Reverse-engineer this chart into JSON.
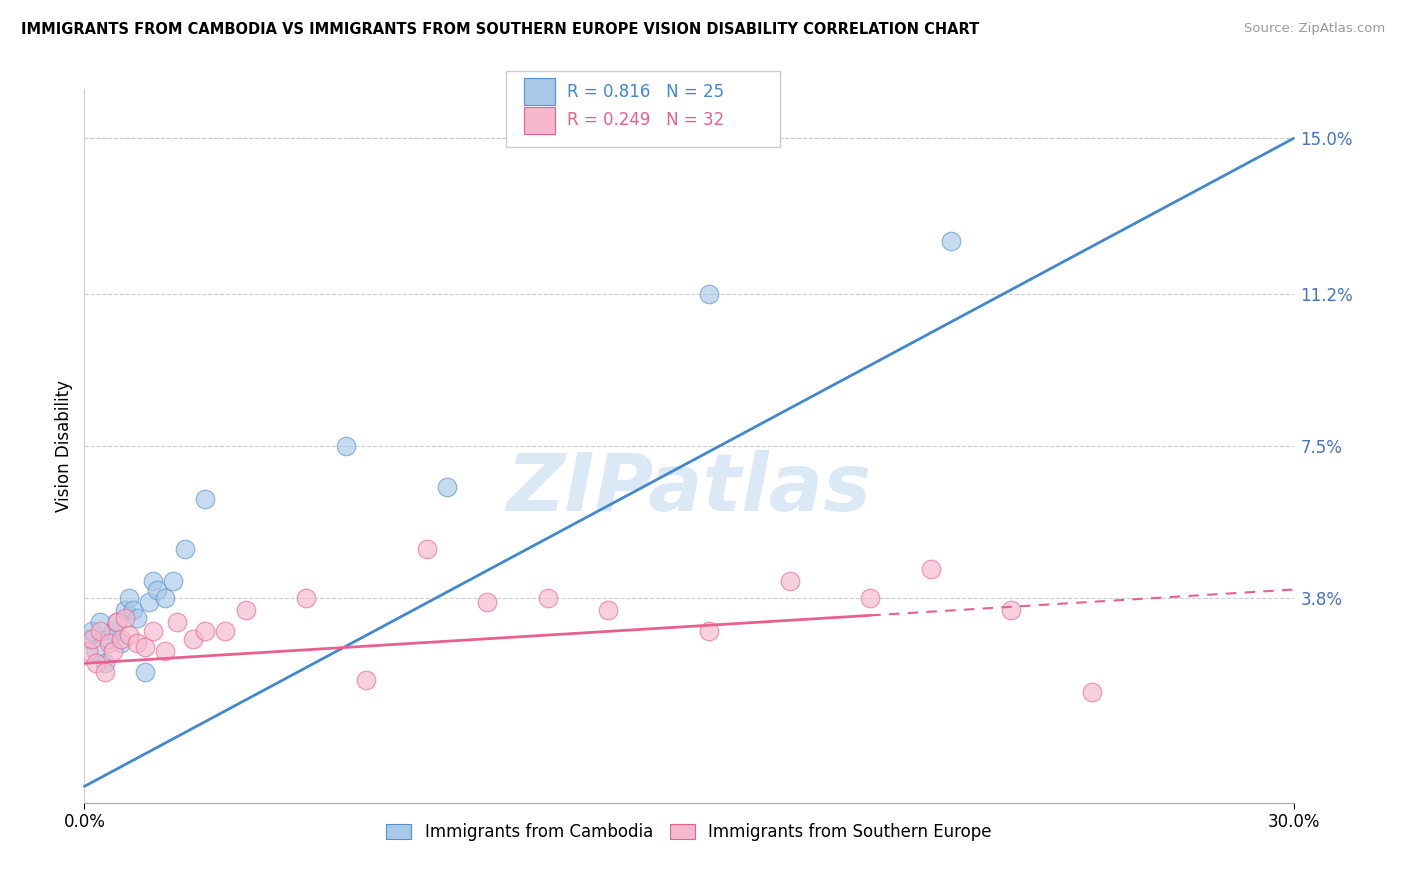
{
  "title": "IMMIGRANTS FROM CAMBODIA VS IMMIGRANTS FROM SOUTHERN EUROPE VISION DISABILITY CORRELATION CHART",
  "source": "Source: ZipAtlas.com",
  "ylabel": "Vision Disability",
  "yticks": [
    0.0,
    0.038,
    0.075,
    0.112,
    0.15
  ],
  "ytick_labels": [
    "",
    "3.8%",
    "7.5%",
    "11.2%",
    "15.0%"
  ],
  "xlim": [
    0.0,
    0.3
  ],
  "ylim": [
    -0.012,
    0.162
  ],
  "legend_r1": "R = 0.816",
  "legend_n1": "N = 25",
  "legend_r2": "R = 0.249",
  "legend_n2": "N = 32",
  "legend_label1": "Immigrants from Cambodia",
  "legend_label2": "Immigrants from Southern Europe",
  "blue_color": "#a8c8e8",
  "pink_color": "#f5b8cc",
  "blue_edge_color": "#5590c8",
  "pink_edge_color": "#e86090",
  "blue_line_color": "#4488cc",
  "pink_line_color": "#e86090",
  "watermark": "ZIPatlas",
  "cambodia_x": [
    0.001,
    0.002,
    0.003,
    0.004,
    0.005,
    0.006,
    0.007,
    0.008,
    0.009,
    0.01,
    0.011,
    0.012,
    0.013,
    0.015,
    0.016,
    0.017,
    0.018,
    0.02,
    0.022,
    0.025,
    0.03,
    0.065,
    0.09,
    0.155,
    0.215
  ],
  "cambodia_y": [
    0.028,
    0.03,
    0.025,
    0.032,
    0.022,
    0.028,
    0.03,
    0.032,
    0.027,
    0.035,
    0.038,
    0.035,
    0.033,
    0.02,
    0.037,
    0.042,
    0.04,
    0.038,
    0.042,
    0.05,
    0.062,
    0.075,
    0.065,
    0.112,
    0.125
  ],
  "s_europe_x": [
    0.001,
    0.002,
    0.003,
    0.004,
    0.005,
    0.006,
    0.007,
    0.008,
    0.009,
    0.01,
    0.011,
    0.013,
    0.015,
    0.017,
    0.02,
    0.023,
    0.027,
    0.03,
    0.035,
    0.04,
    0.055,
    0.07,
    0.085,
    0.1,
    0.115,
    0.13,
    0.155,
    0.175,
    0.195,
    0.21,
    0.23,
    0.25
  ],
  "s_europe_y": [
    0.025,
    0.028,
    0.022,
    0.03,
    0.02,
    0.027,
    0.025,
    0.032,
    0.028,
    0.033,
    0.029,
    0.027,
    0.026,
    0.03,
    0.025,
    0.032,
    0.028,
    0.03,
    0.03,
    0.035,
    0.038,
    0.018,
    0.05,
    0.037,
    0.038,
    0.035,
    0.03,
    0.042,
    0.038,
    0.045,
    0.035,
    0.015
  ],
  "blue_line_x": [
    0.0,
    0.3
  ],
  "blue_line_y": [
    -0.008,
    0.15
  ],
  "pink_line_x": [
    0.0,
    0.3
  ],
  "pink_line_y": [
    0.022,
    0.04
  ],
  "pink_line_solid_end": 0.195
}
